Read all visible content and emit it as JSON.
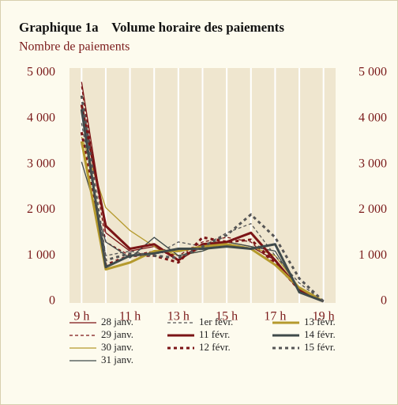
{
  "chart_data": {
    "type": "line",
    "title": "Graphique 1a    Volume horaire des paiements",
    "subtitle": "Nombre de paiements",
    "x": [
      9,
      10,
      11,
      12,
      13,
      14,
      15,
      16,
      17,
      18,
      19
    ],
    "xlim": [
      8.5,
      19.5
    ],
    "xticks": [
      {
        "value": 9,
        "label": "9 h"
      },
      {
        "value": 11,
        "label": "11 h"
      },
      {
        "value": 13,
        "label": "13 h"
      },
      {
        "value": 15,
        "label": "15 h"
      },
      {
        "value": 17,
        "label": "17 h"
      },
      {
        "value": 19,
        "label": "19 h"
      }
    ],
    "ylim": [
      0,
      5000
    ],
    "yticks": [
      0,
      {
        "value": 1000,
        "label": "1 000"
      },
      {
        "value": 2000,
        "label": "2 000"
      },
      {
        "value": 3000,
        "label": "3 000"
      },
      {
        "value": 4000,
        "label": "4 000"
      },
      {
        "value": 5000,
        "label": "5 000"
      }
    ],
    "series": [
      {
        "name": "28 janv.",
        "color": "#7b1416",
        "width": 1.3,
        "dash": false,
        "values": [
          4800,
          1500,
          1100,
          1200,
          900,
          1200,
          1300,
          1200,
          900,
          300,
          0
        ]
      },
      {
        "name": "29 janv.",
        "color": "#7b1416",
        "width": 1.3,
        "dash": true,
        "values": [
          4700,
          1300,
          1000,
          1100,
          1000,
          1300,
          1400,
          1300,
          800,
          250,
          0
        ]
      },
      {
        "name": "30 janv.",
        "color": "#b59a2d",
        "width": 1.3,
        "dash": false,
        "values": [
          3600,
          2050,
          1550,
          1200,
          1000,
          1100,
          1300,
          1200,
          1000,
          300,
          0
        ]
      },
      {
        "name": "31 janv.",
        "color": "#3f4a4a",
        "width": 1.3,
        "dash": false,
        "values": [
          3050,
          1300,
          950,
          1400,
          1000,
          1100,
          1300,
          1200,
          1100,
          250,
          0
        ]
      },
      {
        "name": "1er févr.",
        "color": "#555555",
        "width": 1.3,
        "dash": true,
        "values": [
          3900,
          1000,
          1100,
          1000,
          1300,
          1200,
          1500,
          1700,
          1000,
          400,
          0
        ]
      },
      {
        "name": "11 févr.",
        "color": "#7b1416",
        "width": 3,
        "dash": false,
        "values": [
          4300,
          1650,
          1150,
          1250,
          900,
          1250,
          1300,
          1500,
          900,
          250,
          0
        ]
      },
      {
        "name": "12 févr.",
        "color": "#7b1416",
        "width": 3,
        "dash": true,
        "values": [
          3700,
          800,
          1000,
          1000,
          850,
          1400,
          1300,
          1350,
          850,
          250,
          0
        ]
      },
      {
        "name": "13 févr.",
        "color": "#b59a2d",
        "width": 3,
        "dash": false,
        "values": [
          3500,
          700,
          850,
          1100,
          1100,
          1200,
          1250,
          1150,
          800,
          300,
          0
        ]
      },
      {
        "name": "14 févr.",
        "color": "#3f4a4a",
        "width": 3,
        "dash": false,
        "values": [
          4200,
          750,
          1000,
          1050,
          1150,
          1150,
          1200,
          1150,
          1250,
          200,
          0
        ]
      },
      {
        "name": "15 févr.",
        "color": "#555555",
        "width": 3,
        "dash": true,
        "values": [
          4500,
          900,
          1050,
          1000,
          950,
          1200,
          1450,
          1900,
          1400,
          500,
          0
        ]
      }
    ],
    "grid": true
  }
}
